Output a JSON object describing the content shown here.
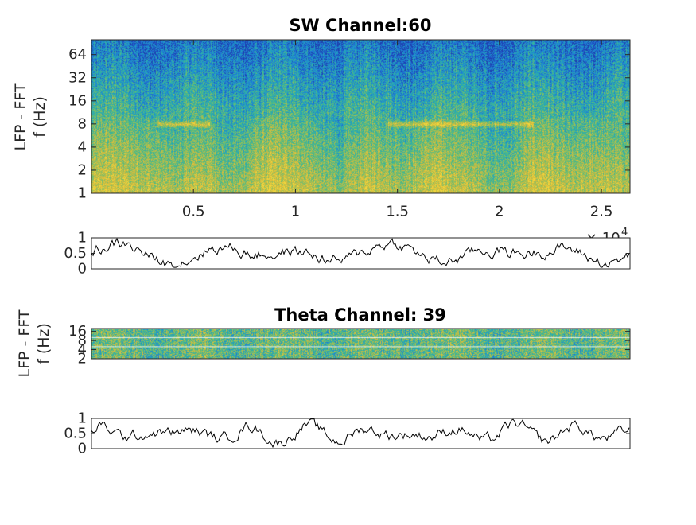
{
  "chart_data": [
    {
      "type": "heatmap",
      "title": "SW Channel:60",
      "ylabel_line1": "LFP - FFT",
      "ylabel_line2": "f (Hz)",
      "yscale": "log",
      "y_ticks": [
        "1",
        "2",
        "4",
        "8",
        "16",
        "32",
        "64"
      ],
      "y_tick_values": [
        1,
        2,
        4,
        8,
        16,
        32,
        64
      ],
      "ylim": [
        1,
        100
      ],
      "x_ticks": [
        "0.5",
        "1",
        "1.5",
        "2",
        "2.5"
      ],
      "x_tick_values": [
        0.5,
        1,
        1.5,
        2,
        2.5
      ],
      "xlim": [
        0,
        2.64
      ],
      "x_exponent_base": "× 10",
      "x_exponent_power": "4",
      "colormap": [
        "#1e3eae",
        "#1f72d8",
        "#1fa3c2",
        "#46b98a",
        "#95bf5a",
        "#d8ba3c",
        "#f5d83b"
      ],
      "dominant_band_hz": 8
    },
    {
      "type": "line",
      "y_ticks": [
        "0",
        "0.5",
        "1"
      ],
      "y_tick_values": [
        0,
        0.5,
        1
      ],
      "ylim": [
        0,
        1
      ],
      "xlim": [
        0,
        2.64
      ],
      "line_color": "#000000"
    },
    {
      "type": "heatmap",
      "title": "Theta Channel: 39",
      "ylabel_line1": "LFP - FFT",
      "ylabel_line2": "f (Hz)",
      "yscale": "log",
      "y_ticks": [
        "2",
        "4",
        "8",
        "16"
      ],
      "y_tick_values": [
        2,
        4,
        8,
        16
      ],
      "ylim": [
        2,
        20
      ],
      "xlim": [
        0,
        2.64
      ],
      "colormap": [
        "#1e3eae",
        "#1f72d8",
        "#1fa3c2",
        "#46b98a",
        "#95bf5a",
        "#d8ba3c",
        "#f5d83b"
      ]
    },
    {
      "type": "line",
      "y_ticks": [
        "0",
        "0.5",
        "1"
      ],
      "y_tick_values": [
        0,
        0.5,
        1
      ],
      "ylim": [
        0,
        1
      ],
      "xlim": [
        0,
        2.64
      ],
      "line_color": "#000000"
    }
  ],
  "colors": {
    "axis": "#262626",
    "background": "#ffffff"
  }
}
